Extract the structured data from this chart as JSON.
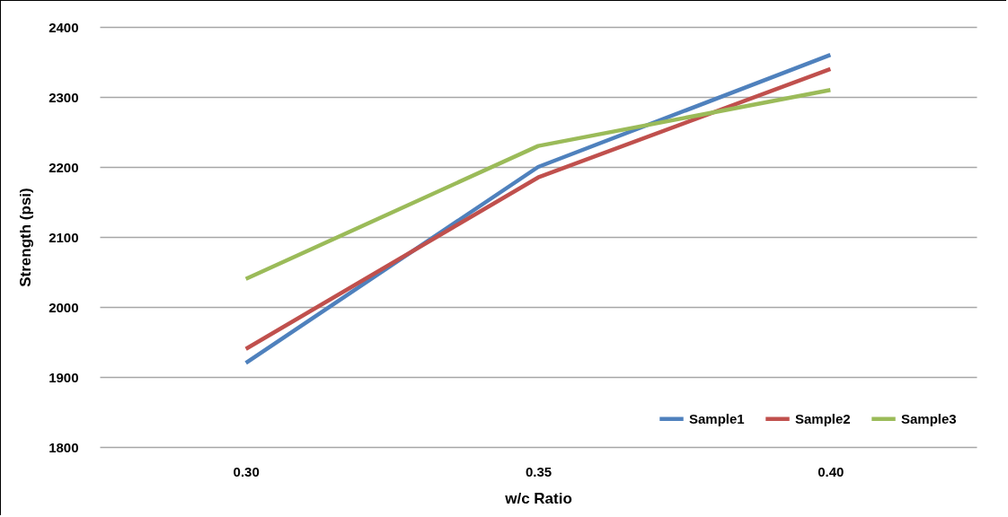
{
  "chart_data": {
    "type": "line",
    "xlabel": "w/c Ratio",
    "ylabel": "Strength (psi)",
    "categories": [
      "0.30",
      "0.35",
      "0.40"
    ],
    "series": [
      {
        "name": "Sample1",
        "color": "#4f81bd",
        "values": [
          1920,
          2200,
          2360
        ]
      },
      {
        "name": "Sample2",
        "color": "#c0504d",
        "values": [
          1940,
          2185,
          2340
        ]
      },
      {
        "name": "Sample3",
        "color": "#9bbb59",
        "values": [
          2040,
          2230,
          2310
        ]
      }
    ],
    "ylim": [
      1800,
      2400
    ],
    "yticks": [
      1800,
      1900,
      2000,
      2100,
      2200,
      2300,
      2400
    ],
    "grid": "y",
    "legend": "bottom right",
    "marker": "none",
    "line_style": "solid"
  }
}
